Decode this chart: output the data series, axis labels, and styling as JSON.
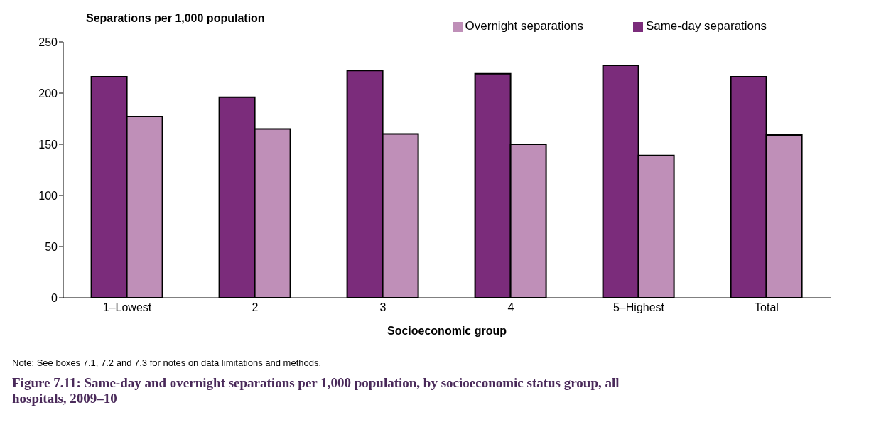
{
  "chart_data": {
    "type": "bar",
    "title": "Figure 7.11: Same-day and overnight separations per 1,000 population, by socioeconomic status group, all hospitals, 2009–10",
    "ylabel": "Separations per 1,000 population",
    "xlabel": "Socioeconomic group",
    "annotations": [
      "Note: See boxes 7.1, 7.2 and 7.3 for notes on data limitations and methods."
    ],
    "categories": [
      "1–Lowest",
      "2",
      "3",
      "4",
      "5–Highest",
      "Total"
    ],
    "series": [
      {
        "name": "Same-day separations",
        "color": "#7b2c7b",
        "values": [
          216,
          196,
          222,
          219,
          227,
          216
        ]
      },
      {
        "name": "Overnight separations",
        "color": "#bf8fb8",
        "values": [
          177,
          165,
          160,
          150,
          139,
          159
        ]
      }
    ],
    "ylim": [
      0,
      250
    ],
    "yticks": [
      0,
      50,
      100,
      150,
      200,
      250
    ],
    "grid": false,
    "legend": "top right"
  }
}
